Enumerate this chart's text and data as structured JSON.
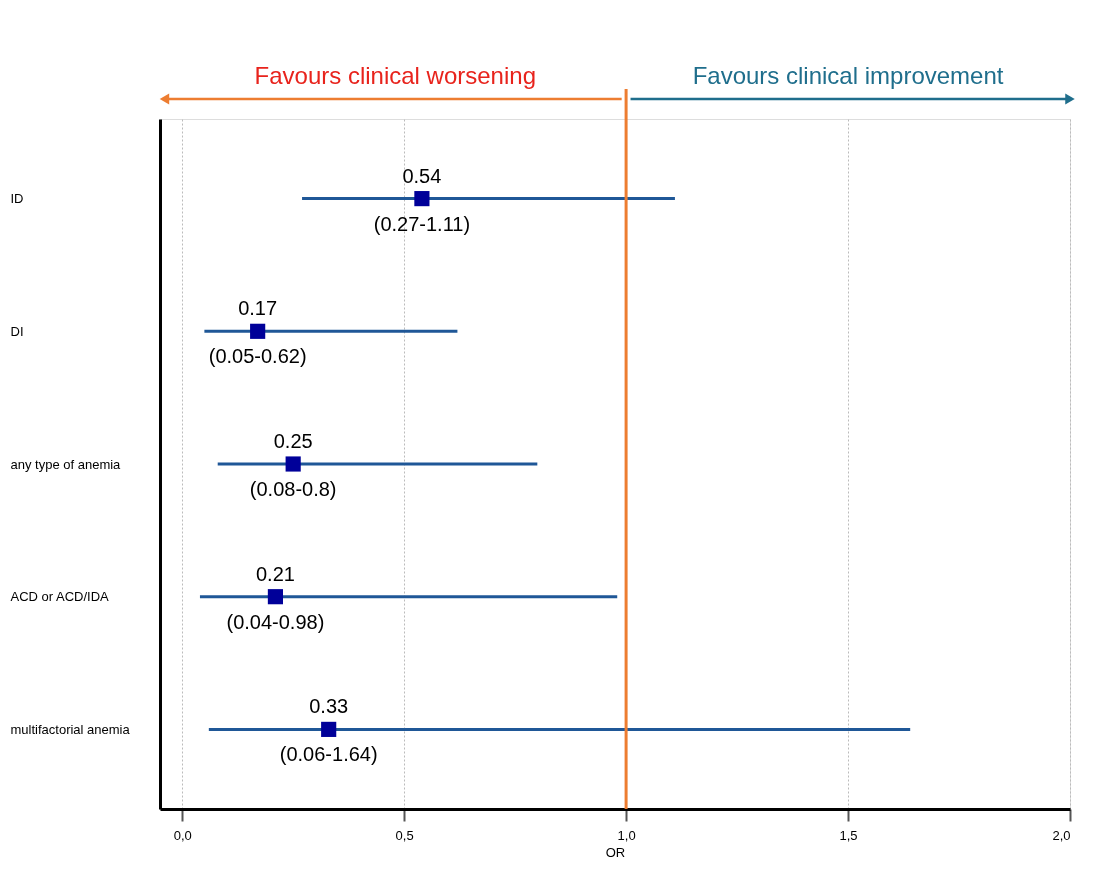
{
  "chart_data": {
    "type": "scatter",
    "categories": [
      "ID",
      "DI",
      "any type of anemia",
      "ACD or ACD/IDA",
      "multifactorial anemia"
    ],
    "orientation": "horizontal",
    "series": [
      {
        "color": "#000099",
        "values": [
          0.54,
          0.17,
          0.25,
          0.21,
          0.33
        ],
        "value_labels": [
          "0.54",
          "0.17",
          "0.25",
          "0.21",
          "0.33"
        ],
        "errors": [
          [
            0.27,
            1.11
          ],
          [
            0.05,
            0.62
          ],
          [
            0.08,
            0.8
          ],
          [
            0.04,
            0.98
          ],
          [
            0.06,
            1.64
          ]
        ]
      }
    ],
    "marker": "square",
    "xlim": [
      -0.05,
      2.0
    ],
    "xticks": [
      {
        "value": 0,
        "label": "0,0"
      },
      {
        "value": 0.5,
        "label": "0,5"
      },
      {
        "value": 1,
        "label": "1,0"
      },
      {
        "value": 1.5,
        "label": "1,5"
      },
      {
        "value": 2,
        "label": "2,0"
      }
    ],
    "xlabel": "OR",
    "grid": "x",
    "ref_lines": [
      {
        "axis": "x",
        "value": 1,
        "color": "#ed7d31"
      }
    ],
    "annotations": [
      "Favours clinical worsening",
      "Favours clinical improvement",
      {
        "text": "(0.27-1.11)",
        "x": 0.54,
        "y": "ID"
      },
      {
        "text": "(0.05-0.62)",
        "x": 0.17,
        "y": "DI"
      },
      {
        "text": "(0.08-0.8)",
        "x": 0.25,
        "y": "any type of anemia"
      },
      {
        "text": "(0.04-0.98)",
        "x": 0.21,
        "y": "ACD or ACD/IDA"
      },
      {
        "text": "(0.06-1.64)",
        "x": 0.33,
        "y": "multifactorial anemia"
      }
    ]
  }
}
